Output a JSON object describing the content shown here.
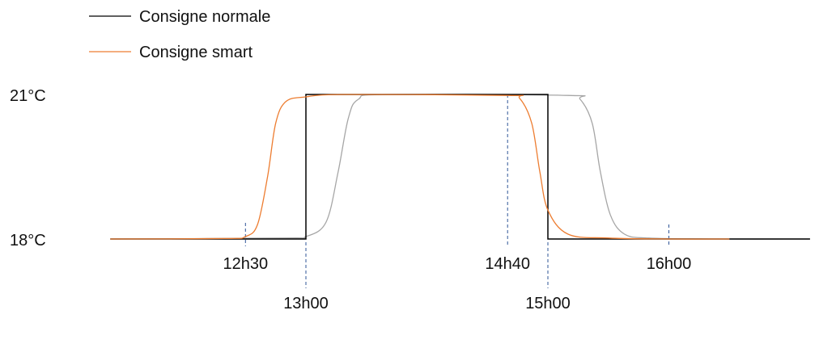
{
  "chart_data": {
    "type": "line",
    "x_unit": "time",
    "y_unit": "°C",
    "y_ticks": [
      {
        "value": 18,
        "label": "18°C"
      },
      {
        "value": 21,
        "label": "21°C"
      }
    ],
    "x_ticks": [
      {
        "value": "12:30",
        "label": "12h30",
        "row": "upper"
      },
      {
        "value": "13:00",
        "label": "13h00",
        "row": "lower"
      },
      {
        "value": "14:40",
        "label": "14h40",
        "row": "upper"
      },
      {
        "value": "15:00",
        "label": "15h00",
        "row": "lower"
      },
      {
        "value": "16:00",
        "label": "16h00",
        "row": "upper"
      }
    ],
    "legend": {
      "placement": "top-left",
      "entries": [
        {
          "label": "Consigne normale",
          "color": "#000000"
        },
        {
          "label": "Consigne smart",
          "color": "#ed7d31"
        }
      ]
    },
    "tick_line_color": "#2f5597",
    "series": [
      {
        "name": "Consigne normale",
        "color": "#000000",
        "shape": "step",
        "points": [
          [
            "11:23",
            18
          ],
          [
            "13:00",
            18
          ],
          [
            "13:00",
            21
          ],
          [
            "15:00",
            21
          ],
          [
            "15:00",
            18
          ],
          [
            "17:10",
            18
          ]
        ]
      },
      {
        "name": "Consigne smart",
        "color": "#ed7d31",
        "shape": "smooth",
        "points": [
          [
            "11:23",
            18
          ],
          [
            "12:20",
            18.01
          ],
          [
            "12:30",
            18.05
          ],
          [
            "12:36",
            18.3
          ],
          [
            "12:41",
            19.3
          ],
          [
            "12:45",
            20.4
          ],
          [
            "12:50",
            20.85
          ],
          [
            "13:00",
            20.95
          ],
          [
            "13:20",
            21
          ],
          [
            "14:40",
            20.98
          ],
          [
            "14:46",
            20.92
          ],
          [
            "14:52",
            20.4
          ],
          [
            "14:56",
            19.4
          ],
          [
            "15:00",
            18.6
          ],
          [
            "15:10",
            18.1
          ],
          [
            "15:30",
            18.02
          ],
          [
            "16:00",
            18
          ],
          [
            "16:30",
            18
          ]
        ]
      },
      {
        "color": "#a6a6a6",
        "shape": "smooth",
        "points": [
          [
            "11:23",
            18
          ],
          [
            "12:50",
            18.02
          ],
          [
            "13:00",
            18.05
          ],
          [
            "13:10",
            18.35
          ],
          [
            "13:16",
            19.4
          ],
          [
            "13:21",
            20.5
          ],
          [
            "13:26",
            20.9
          ],
          [
            "13:40",
            21
          ],
          [
            "15:10",
            20.98
          ],
          [
            "15:16",
            20.9
          ],
          [
            "15:22",
            20.4
          ],
          [
            "15:26",
            19.4
          ],
          [
            "15:31",
            18.5
          ],
          [
            "15:38",
            18.1
          ],
          [
            "15:50",
            18.02
          ],
          [
            "16:20",
            18
          ],
          [
            "17:10",
            18
          ]
        ]
      }
    ]
  }
}
